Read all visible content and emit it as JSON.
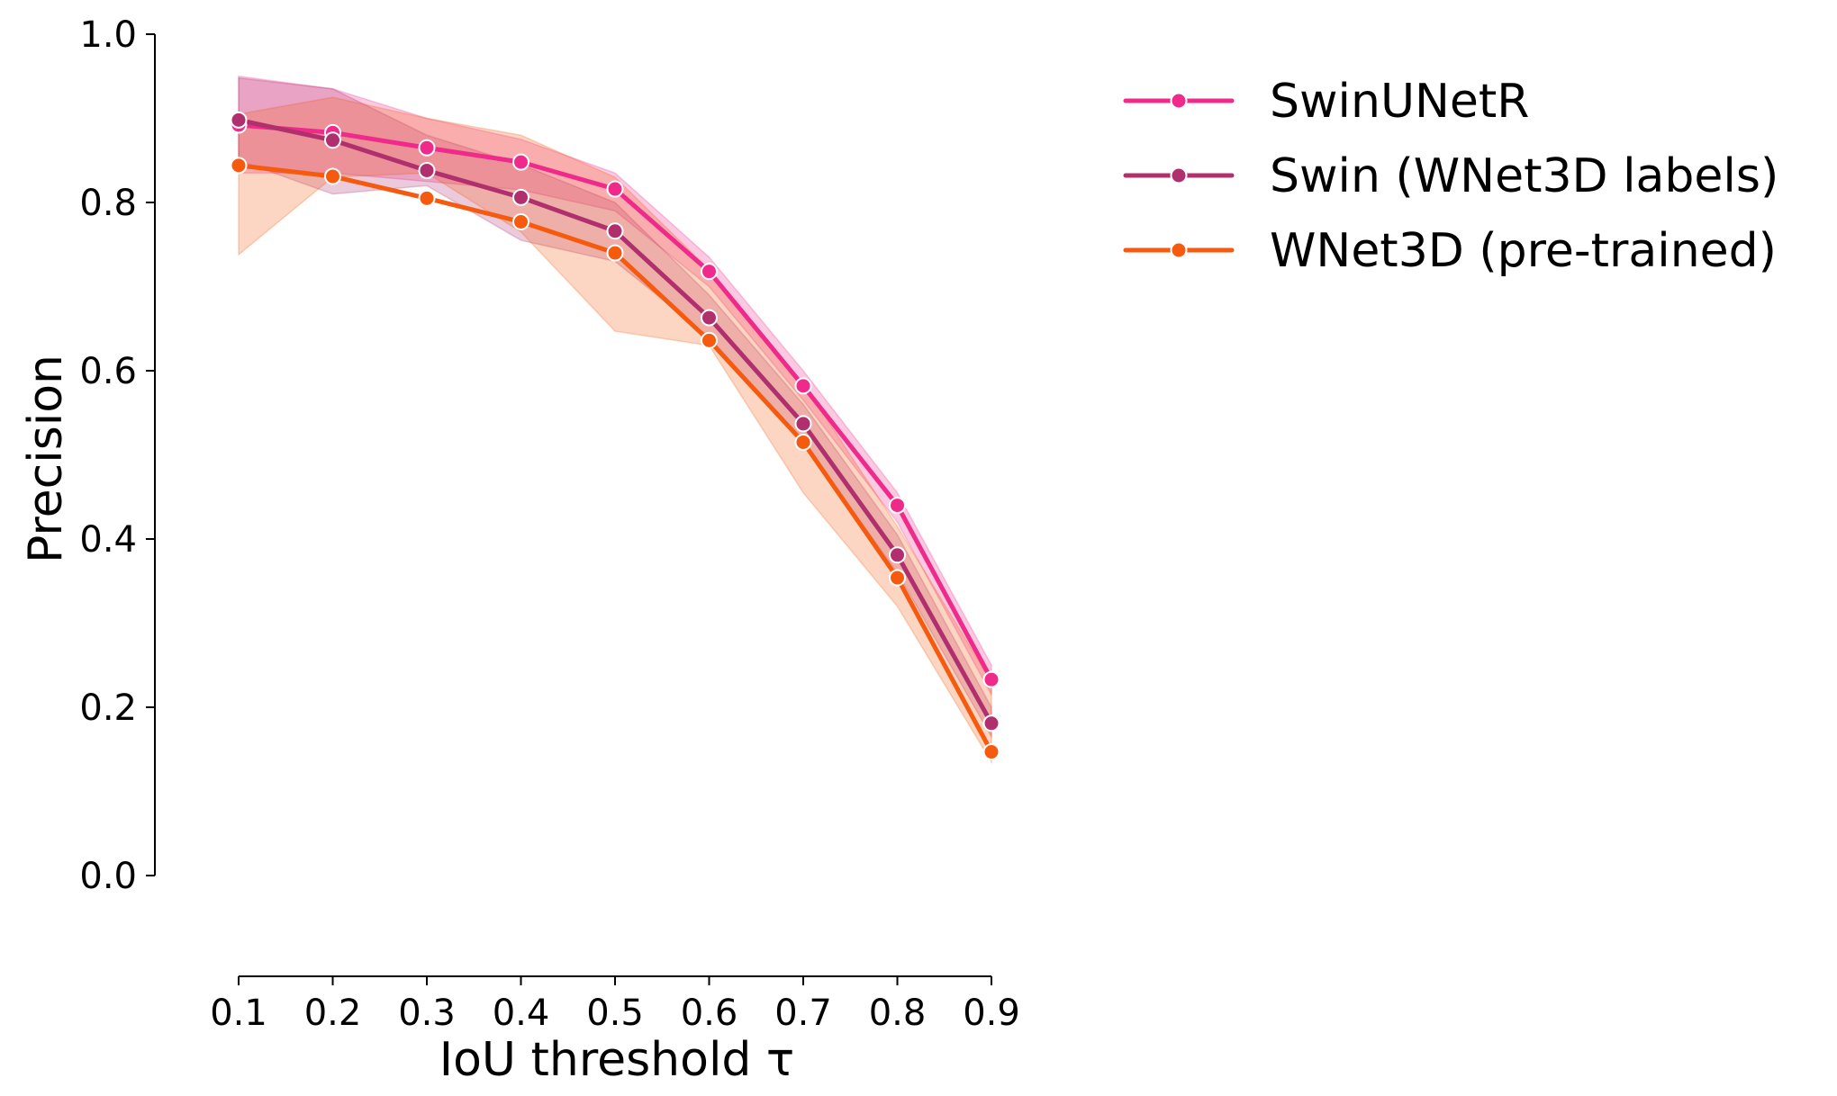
{
  "chart_data": {
    "type": "line",
    "xlabel": "IoU threshold τ",
    "ylabel": "Precision",
    "x": [
      0.1,
      0.2,
      0.3,
      0.4,
      0.5,
      0.6,
      0.7,
      0.8,
      0.9
    ],
    "x_tick_labels": [
      "0.1",
      "0.2",
      "0.3",
      "0.4",
      "0.5",
      "0.6",
      "0.7",
      "0.8",
      "0.9"
    ],
    "y_tick_labels": [
      "0.0",
      "0.2",
      "0.4",
      "0.6",
      "0.8",
      "1.0"
    ],
    "y_ticks": [
      0.0,
      0.2,
      0.4,
      0.6,
      0.8,
      1.0
    ],
    "xlim": [
      0.1,
      0.9
    ],
    "ylim": [
      0.0,
      1.0
    ],
    "grid": false,
    "legend_position": "outside-top-right",
    "series": [
      {
        "name": "SwinUNetR",
        "color": "#f02a8a",
        "values": [
          0.892,
          0.883,
          0.865,
          0.848,
          0.816,
          0.718,
          0.582,
          0.44,
          0.233
        ],
        "ci_lower": [
          0.835,
          0.835,
          0.825,
          0.815,
          0.79,
          0.7,
          0.565,
          0.42,
          0.215
        ],
        "ci_upper": [
          0.95,
          0.935,
          0.9,
          0.875,
          0.835,
          0.735,
          0.6,
          0.455,
          0.25
        ]
      },
      {
        "name": "Swin (WNet3D labels)",
        "color": "#b0306e",
        "values": [
          0.898,
          0.874,
          0.838,
          0.806,
          0.766,
          0.663,
          0.537,
          0.381,
          0.181
        ],
        "ci_lower": [
          0.85,
          0.81,
          0.82,
          0.755,
          0.73,
          0.64,
          0.515,
          0.36,
          0.165
        ],
        "ci_upper": [
          0.948,
          0.935,
          0.88,
          0.845,
          0.8,
          0.69,
          0.56,
          0.405,
          0.2
        ]
      },
      {
        "name": "WNet3D (pre-trained)",
        "color": "#f55a0f",
        "values": [
          0.844,
          0.831,
          0.805,
          0.777,
          0.74,
          0.636,
          0.515,
          0.354,
          0.147
        ],
        "ci_lower": [
          0.738,
          0.83,
          0.835,
          0.765,
          0.647,
          0.63,
          0.455,
          0.32,
          0.135
        ],
        "ci_upper": [
          0.905,
          0.925,
          0.9,
          0.88,
          0.83,
          0.72,
          0.585,
          0.415,
          0.23
        ]
      }
    ]
  }
}
